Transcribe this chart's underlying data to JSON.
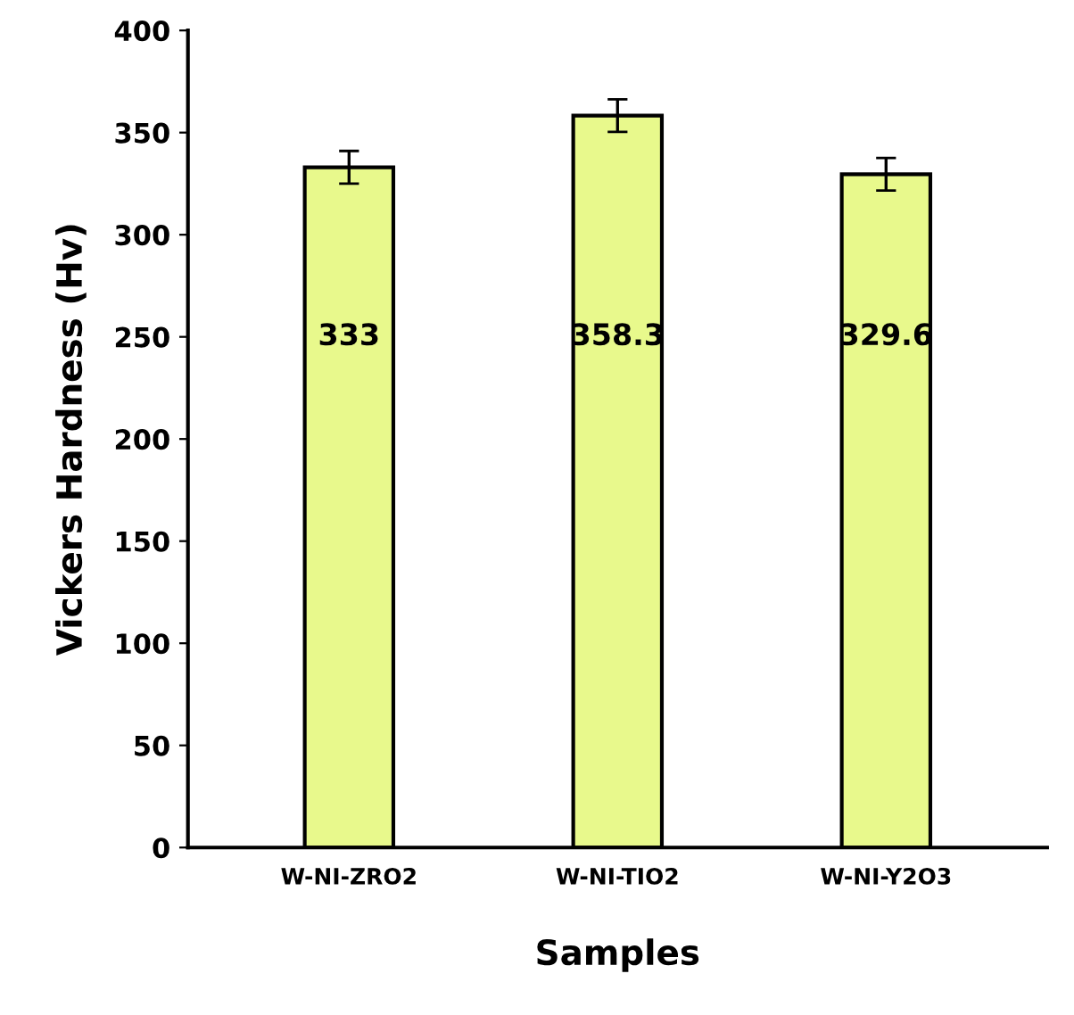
{
  "chart_data": {
    "type": "bar",
    "xlabel": "Samples",
    "ylabel": "Vickers Hardness (Hv)",
    "categories": [
      "W-NI-ZRO2",
      "W-NI-TIO2",
      "W-NI-Y2O3"
    ],
    "values": [
      333,
      358.3,
      329.6
    ],
    "errors": [
      8,
      8,
      8
    ],
    "color": "#e8f98c",
    "ylim": [
      0,
      400
    ],
    "yticks": [
      0,
      50,
      100,
      150,
      200,
      250,
      300,
      350,
      400
    ],
    "grid": false,
    "data_labels": true
  }
}
